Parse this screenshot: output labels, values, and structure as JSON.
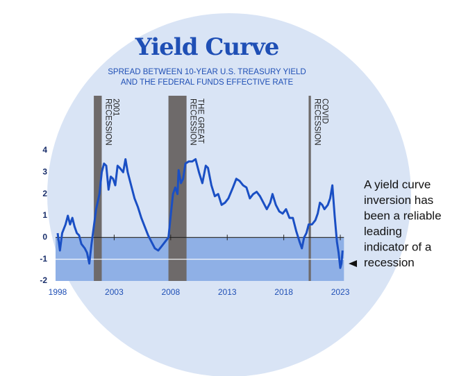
{
  "chart_data": {
    "type": "line",
    "title": "Yield Curve",
    "subtitle": [
      "SPREAD BETWEEN 10-YEAR U.S. TREASURY YIELD",
      "AND THE FEDERAL FUNDS EFFECTIVE RATE"
    ],
    "x": [
      1998.0,
      1998.2,
      1998.4,
      1998.7,
      1998.9,
      1999.1,
      1999.3,
      1999.5,
      1999.7,
      1999.9,
      2000.1,
      2000.4,
      2000.6,
      2000.8,
      2001.0,
      2001.2,
      2001.4,
      2001.7,
      2001.9,
      2002.1,
      2002.3,
      2002.5,
      2002.7,
      2002.9,
      2003.1,
      2003.3,
      2003.5,
      2003.8,
      2004.0,
      2004.2,
      2004.5,
      2004.8,
      2005.1,
      2005.4,
      2005.7,
      2006.0,
      2006.3,
      2006.6,
      2006.9,
      2007.2,
      2007.5,
      2007.8,
      2008.0,
      2008.2,
      2008.4,
      2008.6,
      2008.7,
      2008.9,
      2009.1,
      2009.3,
      2009.6,
      2009.9,
      2010.2,
      2010.5,
      2010.8,
      2011.1,
      2011.3,
      2011.6,
      2011.9,
      2012.2,
      2012.5,
      2012.8,
      2013.1,
      2013.5,
      2013.8,
      2014.1,
      2014.4,
      2014.7,
      2015.0,
      2015.3,
      2015.6,
      2015.9,
      2016.2,
      2016.5,
      2016.8,
      2017.0,
      2017.3,
      2017.6,
      2017.9,
      2018.2,
      2018.5,
      2018.8,
      2019.1,
      2019.4,
      2019.6,
      2019.8,
      2020.0,
      2020.2,
      2020.5,
      2020.8,
      2021.0,
      2021.2,
      2021.4,
      2021.6,
      2021.9,
      2022.1,
      2022.3,
      2022.5,
      2022.7,
      2022.85,
      2023.0,
      2023.1,
      2023.2
    ],
    "series": [
      {
        "name": "Spread",
        "color": "#1a4fc4",
        "values": [
          0.2,
          -0.6,
          0.2,
          0.6,
          1.0,
          0.6,
          0.9,
          0.5,
          0.2,
          0.1,
          -0.3,
          -0.5,
          -0.7,
          -1.2,
          -0.3,
          0.5,
          1.3,
          2.0,
          3.0,
          3.4,
          3.3,
          2.2,
          2.8,
          2.7,
          2.4,
          3.3,
          3.2,
          3.0,
          3.6,
          3.0,
          2.4,
          1.8,
          1.4,
          0.9,
          0.5,
          0.1,
          -0.2,
          -0.5,
          -0.6,
          -0.4,
          -0.2,
          0.0,
          1.0,
          2.0,
          2.3,
          2.0,
          3.1,
          2.5,
          2.7,
          3.4,
          3.5,
          3.5,
          3.6,
          3.0,
          2.5,
          3.3,
          3.2,
          2.4,
          1.9,
          2.0,
          1.5,
          1.6,
          1.8,
          2.3,
          2.7,
          2.6,
          2.4,
          2.3,
          1.8,
          2.0,
          2.1,
          1.9,
          1.6,
          1.3,
          1.6,
          2.0,
          1.5,
          1.2,
          1.1,
          1.3,
          0.9,
          0.9,
          0.3,
          -0.2,
          -0.5,
          0.0,
          0.2,
          0.6,
          0.6,
          0.8,
          1.1,
          1.6,
          1.5,
          1.3,
          1.5,
          1.8,
          2.4,
          1.0,
          -0.2,
          -0.7,
          -1.4,
          -1.2,
          -0.6
        ]
      }
    ],
    "xlim": [
      1998,
      2023.2
    ],
    "xticks": [
      1998,
      2003,
      2008,
      2013,
      2018,
      2023
    ],
    "ylim": [
      -2,
      4
    ],
    "yticks": [
      -2,
      -1,
      0,
      1,
      2,
      3,
      4
    ],
    "recessions": [
      {
        "label": [
          "2001",
          "RECESSION"
        ],
        "start": 2001.2,
        "end": 2001.9
      },
      {
        "label": [
          "THE GREAT",
          "RECESSION"
        ],
        "start": 2007.8,
        "end": 2009.4
      },
      {
        "label": [
          "COVID",
          "RECESSION"
        ],
        "start": 2020.2,
        "end": 2020.4
      }
    ],
    "annotation": [
      "A yield curve",
      "inversion has",
      "been a reliable",
      "leading",
      "indicator of a",
      "recession"
    ]
  }
}
